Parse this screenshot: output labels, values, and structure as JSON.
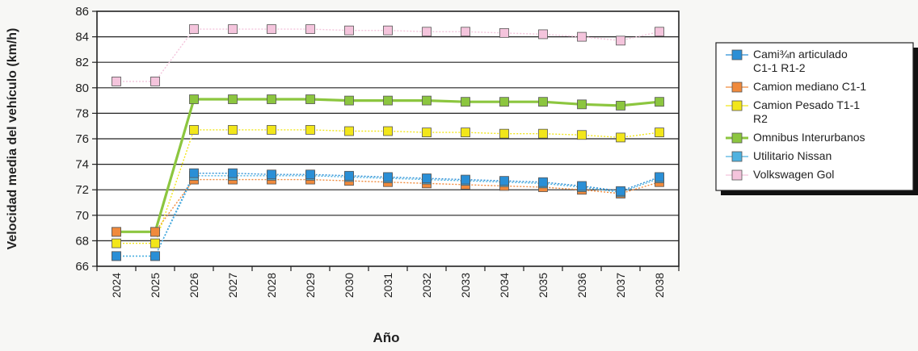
{
  "chart_data": {
    "type": "line",
    "xlabel": "Año",
    "ylabel": "Velocidad media del vehículo (km/h)",
    "categories": [
      "2024",
      "2025",
      "2026",
      "2027",
      "2028",
      "2029",
      "2030",
      "2031",
      "2032",
      "2033",
      "2034",
      "2035",
      "2036",
      "2037",
      "2038"
    ],
    "ylim": [
      66,
      86
    ],
    "yticks": [
      66,
      68,
      70,
      72,
      74,
      76,
      78,
      80,
      82,
      84,
      86
    ],
    "grid": true,
    "legend_position": "right",
    "series": [
      {
        "name": "Cami¾n articulado C1-1 R1-2",
        "legend_lines": [
          "Cami¾n articulado",
          "C1-1 R1-2"
        ],
        "color": "#2a8fd6",
        "values": [
          66.8,
          66.8,
          73.3,
          73.3,
          73.2,
          73.2,
          73.1,
          73.0,
          72.9,
          72.8,
          72.7,
          72.6,
          72.3,
          71.9,
          73.0
        ]
      },
      {
        "name": "Camion mediano C1-1",
        "legend_lines": [
          "Camion mediano C1-1"
        ],
        "color": "#f08a3c",
        "values": [
          68.7,
          68.7,
          72.8,
          72.8,
          72.8,
          72.8,
          72.7,
          72.6,
          72.5,
          72.4,
          72.3,
          72.2,
          72.0,
          71.7,
          72.6
        ]
      },
      {
        "name": "Camion Pesado T1-1 R2",
        "legend_lines": [
          "Camion Pesado T1-1",
          "R2"
        ],
        "color": "#f2e61a",
        "values": [
          67.8,
          67.8,
          76.7,
          76.7,
          76.7,
          76.7,
          76.6,
          76.6,
          76.5,
          76.5,
          76.4,
          76.4,
          76.3,
          76.1,
          76.5
        ]
      },
      {
        "name": "Omnibus Interurbanos",
        "legend_lines": [
          "Omnibus Interurbanos"
        ],
        "color": "#8cc63f",
        "values": [
          68.7,
          68.7,
          79.1,
          79.1,
          79.1,
          79.1,
          79.0,
          79.0,
          79.0,
          78.9,
          78.9,
          78.9,
          78.7,
          78.6,
          78.9
        ]
      },
      {
        "name": "Utilitario Nissan",
        "legend_lines": [
          "Utilitario Nissan"
        ],
        "color": "#4fb2e0",
        "values": [
          66.8,
          66.8,
          73.1,
          73.1,
          73.1,
          73.1,
          73.0,
          72.9,
          72.8,
          72.7,
          72.6,
          72.5,
          72.2,
          71.8,
          72.9
        ]
      },
      {
        "name": "Volkswagen Gol",
        "legend_lines": [
          "Volkswagen Gol"
        ],
        "color": "#f4c4dc",
        "values": [
          80.5,
          80.5,
          84.6,
          84.6,
          84.6,
          84.6,
          84.5,
          84.5,
          84.4,
          84.4,
          84.3,
          84.2,
          84.0,
          83.7,
          84.4
        ]
      }
    ]
  }
}
